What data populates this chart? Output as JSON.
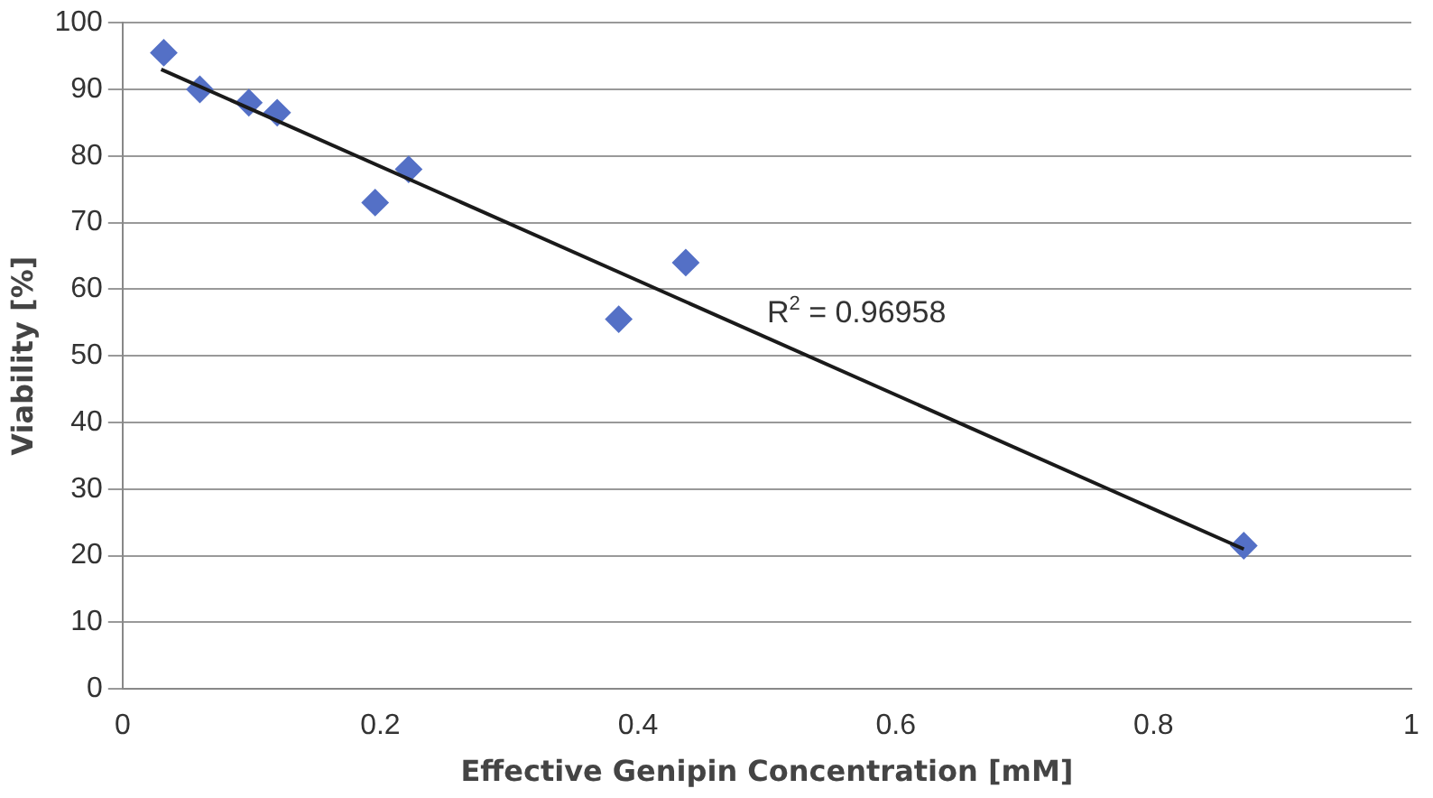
{
  "chart_data": {
    "type": "scatter",
    "xlabel": "Effective Genipin Concentration [mM]",
    "ylabel": "Viability [%]",
    "xlim": [
      0,
      1
    ],
    "xticks": [
      0,
      0.2,
      0.4,
      0.6,
      0.8,
      1
    ],
    "ylim": [
      0,
      100
    ],
    "yticks": [
      0,
      10,
      20,
      30,
      40,
      50,
      60,
      70,
      80,
      90,
      100
    ],
    "grid": "y",
    "legend": false,
    "series": [
      {
        "marker": "diamond",
        "color": "#5470c6",
        "x": [
          0.032,
          0.06,
          0.098,
          0.12,
          0.196,
          0.222,
          0.385,
          0.437,
          0.87
        ],
        "values": [
          95.5,
          90,
          88,
          86.5,
          73,
          78,
          55.5,
          64,
          21.5
        ]
      },
      {
        "type": "line",
        "marker": "none",
        "color": "#1a1a1a",
        "x": [
          0.03,
          0.87
        ],
        "values": [
          93,
          21
        ]
      }
    ],
    "annotations": [
      "R$^{2}$ = 0.96958"
    ]
  }
}
